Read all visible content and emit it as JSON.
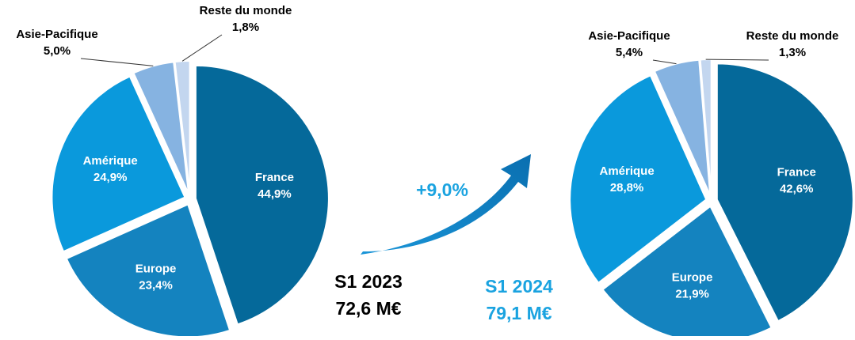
{
  "growth_label": "+9,0%",
  "chart_data": [
    {
      "type": "pie",
      "title": "S1 2023",
      "subtitle": "72,6 M€",
      "title_color": "#000000",
      "categories": [
        "France",
        "Europe",
        "Amérique",
        "Asie-Pacifique",
        "Reste du monde"
      ],
      "values": [
        44.9,
        23.4,
        24.9,
        5.0,
        1.8
      ],
      "value_labels": [
        "44,9%",
        "23,4%",
        "24,9%",
        "5,0%",
        "1,8%"
      ],
      "colors": [
        "#05699a",
        "#1483bf",
        "#0a99dc",
        "#86b3e1",
        "#c3d6ef"
      ]
    },
    {
      "type": "pie",
      "title": "S1 2024",
      "subtitle": "79,1 M€",
      "title_color": "#1aa3e0",
      "categories": [
        "France",
        "Europe",
        "Amérique",
        "Asie-Pacifique",
        "Reste du monde"
      ],
      "values": [
        42.6,
        21.9,
        28.8,
        5.4,
        1.3
      ],
      "value_labels": [
        "42,6%",
        "21,9%",
        "28,8%",
        "5,4%",
        "1,3%"
      ],
      "colors": [
        "#05699a",
        "#1483bf",
        "#0a99dc",
        "#86b3e1",
        "#c3d6ef"
      ]
    }
  ]
}
